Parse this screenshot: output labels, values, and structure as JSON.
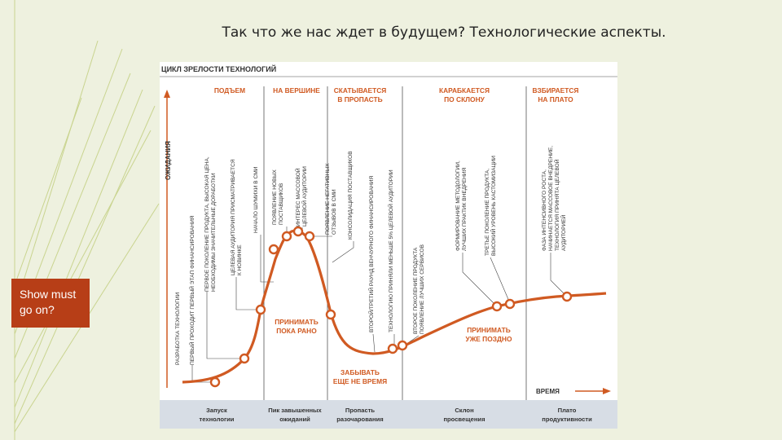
{
  "slide": {
    "title": "Так что же нас ждет в будущем? Технологические аспекты.",
    "note": "Show must go on?"
  },
  "figure": {
    "title": "ЦИКЛ ЗРЕЛОСТИ ТЕХНОЛОГИЙ",
    "y_axis_label": "ОЖИДАНИЯ",
    "x_axis_label": "ВРЕМЯ",
    "phase_headers": [
      {
        "line1": "ПОДЪЕМ",
        "line2": ""
      },
      {
        "line1": "НА ВЕРШИНЕ",
        "line2": ""
      },
      {
        "line1": "СКАТЫВАЕТСЯ",
        "line2": "В ПРОПАСТЬ"
      },
      {
        "line1": "КАРАБКАЕТСЯ",
        "line2": "ПО СКЛОНУ"
      },
      {
        "line1": "ВЗБИРАЕТСЯ",
        "line2": "НА ПЛАТО"
      }
    ],
    "curve_notes": [
      {
        "line1": "ПРИНИМАТЬ",
        "line2": "ПОКА РАНО"
      },
      {
        "line1": "ПРИНИМАТЬ",
        "line2": "УЖЕ ПОЗДНО"
      },
      {
        "line1": "ЗАБЫВАТЬ",
        "line2": "ЕЩЕ НЕ ВРЕМЯ"
      }
    ],
    "event_labels": [
      {
        "lines": [
          "РАЗРАБОТКА ТЕХНОЛОГИИ"
        ]
      },
      {
        "lines": [
          "ПЕРВЫЙ ПРОХОДИТ ПЕРВЫЙ ЭТАП ФИНАНСИРОВАНИЯ"
        ]
      },
      {
        "lines": [
          "ПЕРВОЕ ПОКОЛЕНИЕ ПРОДУКТА, ВЫСОКАЯ ЦЕНА,",
          "НЕОБХОДИМЫ ЗНАЧИТЕЛЬНЫЕ ДОРАБОТКИ"
        ]
      },
      {
        "lines": [
          "ЦЕЛЕВАЯ АУДИТОРИЯ ПРИСМАТРИВАЕТСЯ",
          "К НОВИНКЕ"
        ]
      },
      {
        "lines": [
          "НАЧАЛО ШУМИХИ В СМИ"
        ]
      },
      {
        "lines": [
          "ПОЯВЛЕНИЕ НОВЫХ",
          "ПОСТАВЩИКОВ"
        ]
      },
      {
        "lines": [
          "ИНТЕРЕС МАССОВОЙ",
          "ЦЕЛЕВОЙ АУДИТОРИИ"
        ]
      },
      {
        "lines": [
          "ПОЯВЛЕНИЕ НЕГАТИВНЫХ",
          "ОТЗЫВОВ В СМИ"
        ]
      },
      {
        "lines": [
          "КОНСОЛИДАЦИЯ ПОСТАВЩИКОВ"
        ]
      },
      {
        "lines": [
          "ВТОРОЙ/ТРЕТИЙ РАУНД ВЕНЧУРНОГО ФИНАНСИРОВАНИЯ"
        ]
      },
      {
        "lines": [
          "ТЕХНОЛОГИЮ ПРИНЯЛИ МЕНЬШЕ 5% ЦЕЛЕВОЙ АУДИТОРИИ"
        ]
      },
      {
        "lines": [
          "ВТОРОЕ ПОКОЛЕНИЕ ПРОДУКТА",
          "ПОЯВЛЕНИЕ ЛУЧШИХ СЕРВИСОВ"
        ]
      },
      {
        "lines": [
          "ФОРМИРОВАНИЕ МЕТОДОЛОГИИ,",
          "ЛУЧШИХ ПРАКТИК ВНЕДРЕНИЯ"
        ]
      },
      {
        "lines": [
          "ТРЕТЬЕ ПОКОЛЕНИЕ ПРОДУКТА,",
          "ВЫСОКИЙ УРОВЕНЬ КАСТОМИЗАЦИИ"
        ]
      },
      {
        "lines": [
          "ФАЗА ИНТЕНСИВНОГО РОСТА,",
          "НАЧИНАЕТСЯ МАССОВОЕ ВНЕДРЕНИЕ,",
          "ТЕХНОЛОГИЯ ПРИНЯТА ЦЕЛЕВОЙ",
          "АУДИТОРИЕЙ"
        ]
      }
    ],
    "stages": [
      {
        "line1": "Запуск",
        "line2": "технологии"
      },
      {
        "line1": "Пик завышенных",
        "line2": "ожиданий"
      },
      {
        "line1": "Пропасть",
        "line2": "разочарования"
      },
      {
        "line1": "Склон",
        "line2": "просвещения"
      },
      {
        "line1": "Плато",
        "line2": "продуктивности"
      }
    ],
    "colors": {
      "curve": "#d05a22",
      "accent_box": "#b73e17",
      "stage_band": "#d7dde5",
      "deco_lines": "#c9d48f"
    }
  }
}
